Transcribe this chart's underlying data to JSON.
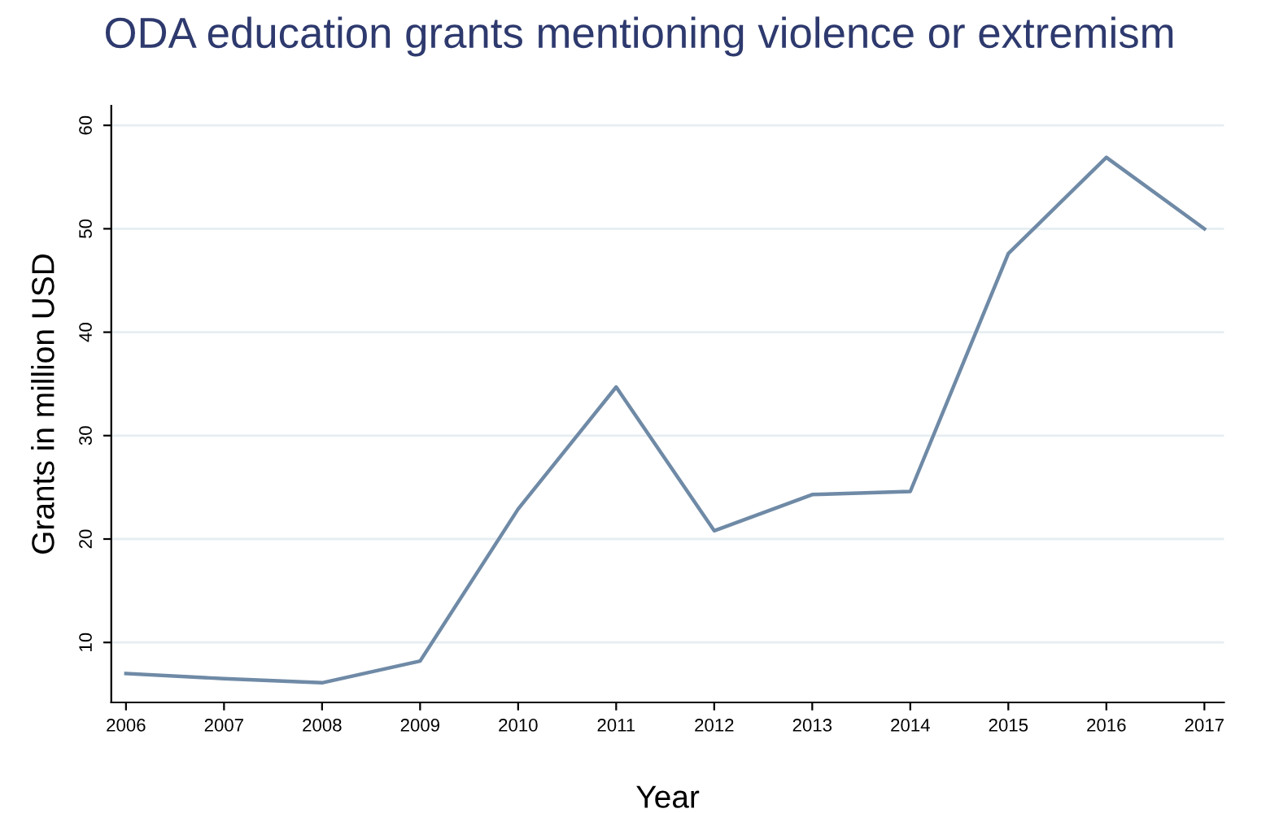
{
  "chart_data": {
    "type": "line",
    "title": "ODA education grants mentioning violence or extremism",
    "xlabel": "Year",
    "ylabel": "Grants in million USD",
    "x": [
      2006,
      2007,
      2008,
      2009,
      2010,
      2011,
      2012,
      2013,
      2014,
      2015,
      2016,
      2017
    ],
    "series": [
      {
        "color": "#6f8aa6",
        "values": [
          7.0,
          6.5,
          6.1,
          8.2,
          22.9,
          34.7,
          20.8,
          24.3,
          24.6,
          47.6,
          56.9,
          50.0
        ]
      }
    ],
    "xlim": [
      2005.85,
      2017.2
    ],
    "ylim": [
      4.2,
      61.9
    ],
    "xticks": [
      2006,
      2007,
      2008,
      2009,
      2010,
      2011,
      2012,
      2013,
      2014,
      2015,
      2016,
      2017
    ],
    "yticks": [
      10,
      20,
      30,
      40,
      50,
      60
    ],
    "grid": "y",
    "marker": "none",
    "line_style": "solid"
  }
}
